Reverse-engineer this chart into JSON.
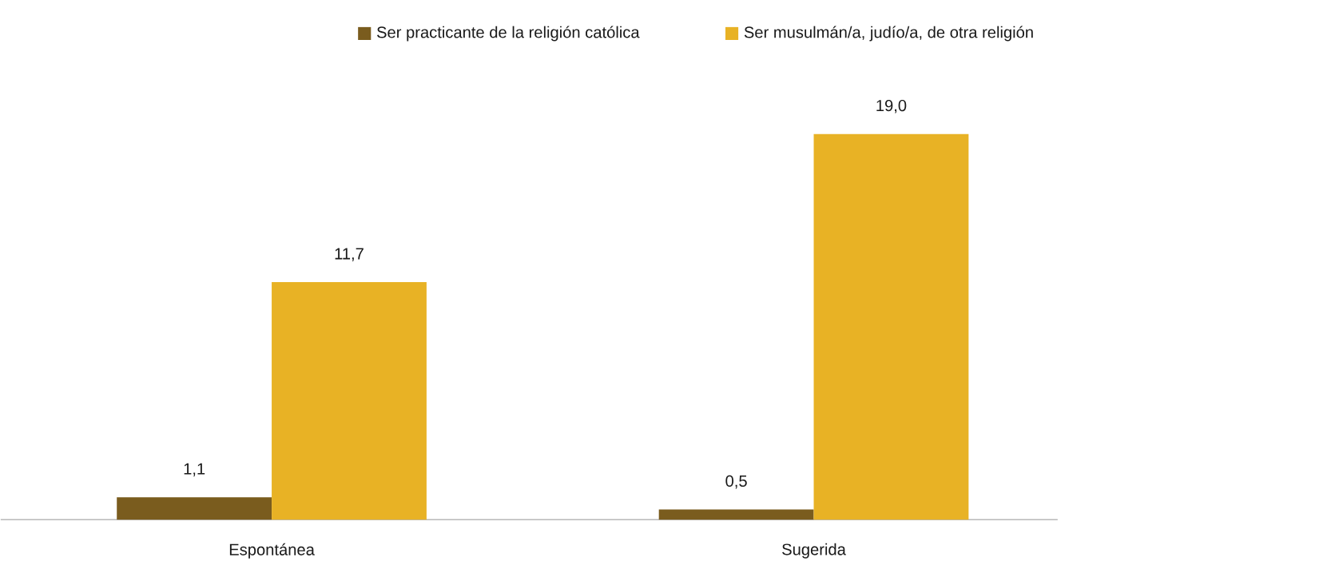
{
  "chart_data": {
    "type": "bar",
    "categories": [
      "Espontánea",
      "Sugerida"
    ],
    "series": [
      {
        "name": "Ser practicante de la religión católica",
        "color": "#7a5c1e",
        "values": [
          1.1,
          0.5
        ],
        "value_labels": [
          "1,1",
          "0,5"
        ]
      },
      {
        "name": "Ser musulmán/a, judío/a, de otra religión",
        "color": "#e8b225",
        "values": [
          11.7,
          19.0
        ],
        "value_labels": [
          "11,7",
          "19,0"
        ]
      }
    ],
    "tick_labels": "x",
    "legend": "top"
  }
}
